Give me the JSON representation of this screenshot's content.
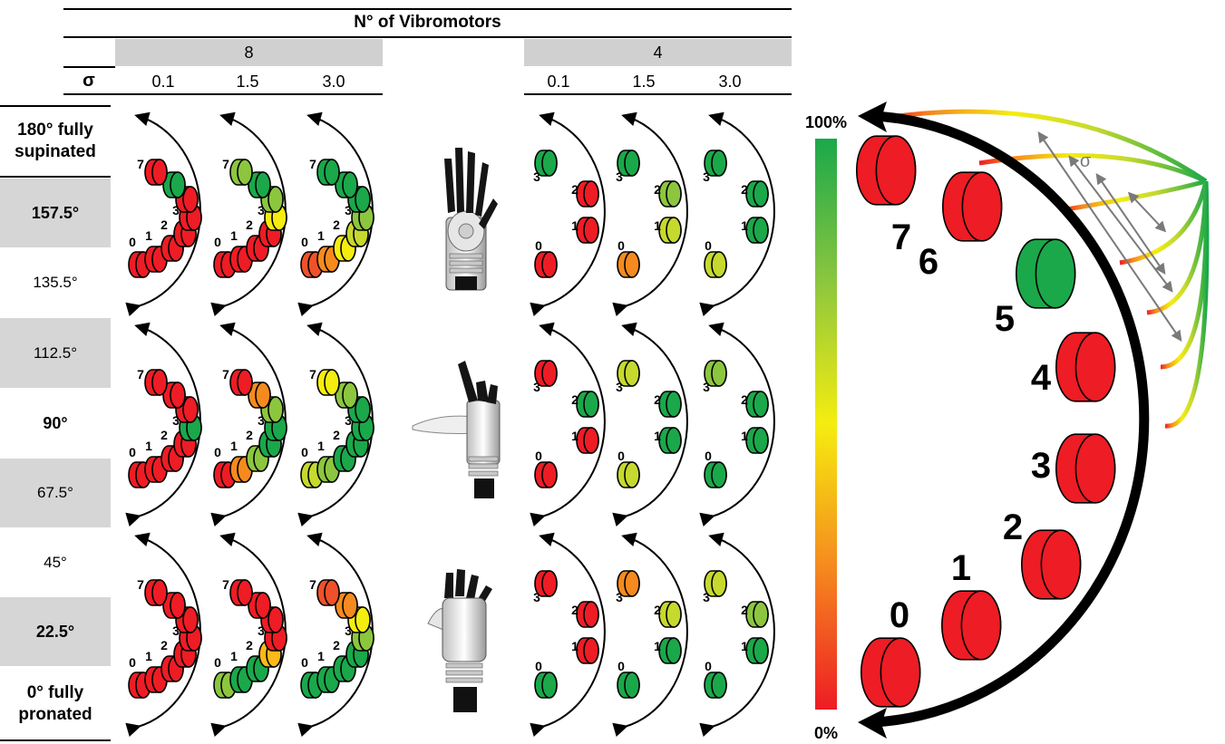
{
  "header": {
    "title": "N° of Vibromotors",
    "sigma_symbol": "σ",
    "groups": [
      {
        "label": "8",
        "sigmas": [
          "0.1",
          "1.5",
          "3.0"
        ]
      },
      {
        "label": "4",
        "sigmas": [
          "0.1",
          "1.5",
          "3.0"
        ]
      }
    ]
  },
  "row_labels": [
    {
      "text": "180° fully supinated",
      "bold": true,
      "shaded": false
    },
    {
      "text": "157.5°",
      "bold": true,
      "shaded": true
    },
    {
      "text": "135.5°",
      "bold": false,
      "shaded": false
    },
    {
      "text": "112.5°",
      "bold": false,
      "shaded": true
    },
    {
      "text": "90°",
      "bold": true,
      "shaded": false
    },
    {
      "text": "67.5°",
      "bold": false,
      "shaded": true
    },
    {
      "text": "45°",
      "bold": false,
      "shaded": false
    },
    {
      "text": "22.5°",
      "bold": true,
      "shaded": true
    },
    {
      "text": "0° fully pronated",
      "bold": true,
      "shaded": false
    }
  ],
  "colors": {
    "red": "#ee1c24",
    "orange_red": "#f0512a",
    "orange": "#f58a1f",
    "amber": "#fbb91a",
    "yellow": "#f5ed0f",
    "yellow_green": "#c6d92e",
    "light_green": "#8cc63f",
    "green": "#1aa84a",
    "black": "#000000"
  },
  "panels_8": [
    [
      [
        "red",
        "red",
        "red",
        "red",
        "red",
        "red",
        "green",
        "red"
      ],
      [
        "red",
        "red",
        "red",
        "red",
        "yellow",
        "light_green",
        "green",
        "light_green"
      ],
      [
        "orange_red",
        "orange",
        "yellow",
        "yellow_green",
        "light_green",
        "green",
        "green",
        "green"
      ]
    ],
    [
      [
        "red",
        "red",
        "red",
        "red",
        "green",
        "red",
        "red",
        "red"
      ],
      [
        "red",
        "orange",
        "light_green",
        "green",
        "green",
        "light_green",
        "orange",
        "red"
      ],
      [
        "yellow_green",
        "light_green",
        "green",
        "green",
        "green",
        "green",
        "light_green",
        "yellow"
      ]
    ],
    [
      [
        "red",
        "red",
        "red",
        "red",
        "red",
        "red",
        "red",
        "red"
      ],
      [
        "light_green",
        "green",
        "green",
        "amber",
        "red",
        "red",
        "red",
        "red"
      ],
      [
        "green",
        "green",
        "green",
        "green",
        "light_green",
        "yellow",
        "orange",
        "orange_red"
      ]
    ]
  ],
  "panels_4": [
    [
      [
        "red",
        "red",
        "red",
        "green"
      ],
      [
        "orange",
        "yellow_green",
        "light_green",
        "green"
      ],
      [
        "yellow_green",
        "green",
        "green",
        "green"
      ]
    ],
    [
      [
        "red",
        "red",
        "green",
        "red"
      ],
      [
        "yellow_green",
        "green",
        "green",
        "yellow_green"
      ],
      [
        "green",
        "green",
        "green",
        "light_green"
      ]
    ],
    [
      [
        "green",
        "red",
        "red",
        "red"
      ],
      [
        "green",
        "green",
        "yellow_green",
        "orange"
      ],
      [
        "green",
        "green",
        "light_green",
        "yellow_green"
      ]
    ]
  ],
  "hand_views": [
    "supinated-hand",
    "neutral-hand",
    "pronated-hand"
  ],
  "colorbar": {
    "top_label": "100%",
    "bottom_label": "0%"
  },
  "legend": {
    "motor_numbers": [
      "0",
      "1",
      "2",
      "3",
      "4",
      "5",
      "6",
      "7"
    ],
    "motor_colors": [
      "red",
      "red",
      "red",
      "red",
      "red",
      "green",
      "red",
      "red"
    ],
    "sigma_label": "σ"
  }
}
